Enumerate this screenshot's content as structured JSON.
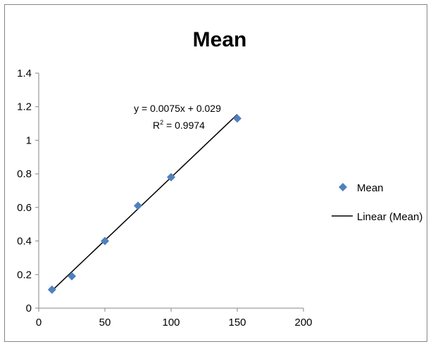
{
  "chart_data": {
    "type": "scatter",
    "title": "Mean",
    "xlabel": "",
    "ylabel": "",
    "xlim": [
      0,
      200
    ],
    "ylim": [
      0,
      1.4
    ],
    "x_ticks": [
      0,
      50,
      100,
      150,
      200
    ],
    "x_tick_labels": [
      "0",
      "50",
      "100",
      "150",
      "200"
    ],
    "y_ticks": [
      0,
      0.2,
      0.4,
      0.6,
      0.8,
      1,
      1.2,
      1.4
    ],
    "y_tick_labels": [
      "0",
      "0.2",
      "0.4",
      "0.6",
      "0.8",
      "1",
      "1.2",
      "1.4"
    ],
    "grid": false,
    "legend_position": "right",
    "series": [
      {
        "name": "Mean",
        "marker": "diamond",
        "color": "#4F81BD",
        "x": [
          10,
          25,
          50,
          75,
          100,
          150
        ],
        "y": [
          0.11,
          0.19,
          0.4,
          0.61,
          0.78,
          1.13
        ]
      }
    ],
    "trendline": {
      "name": "Linear (Mean)",
      "type": "linear",
      "slope": 0.0075,
      "intercept": 0.029,
      "x_range": [
        10,
        150
      ],
      "color": "#000000"
    },
    "annotation": {
      "equation": "y = 0.0075x + 0.029",
      "r_squared_label": "R",
      "r_squared_superscript": "2",
      "r_squared_value": " = 0.9974"
    }
  }
}
